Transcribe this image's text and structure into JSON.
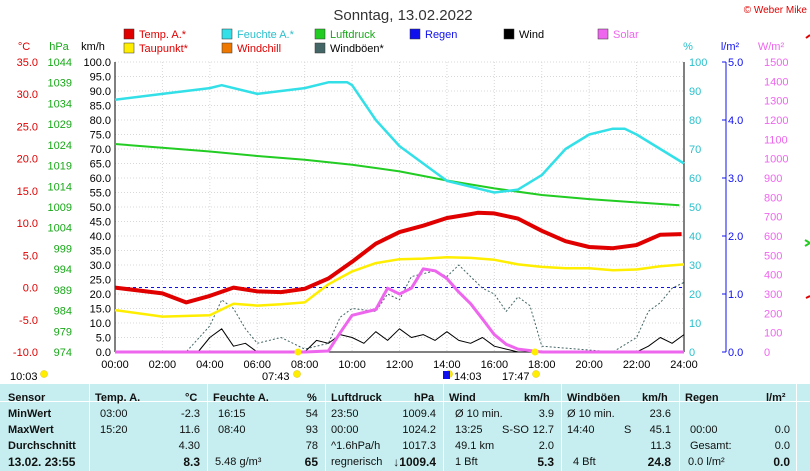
{
  "title": "Sonntag, 13.02.2022",
  "credit": "© Weber Mike",
  "legend": [
    {
      "label": "Temp. A.*",
      "color": "#e00000",
      "text": "#e00000"
    },
    {
      "label": "Feuchte A.*",
      "color": "#33e0e8",
      "text": "#2bc0cc"
    },
    {
      "label": "Luftdruck",
      "color": "#22cc22",
      "text": "#18a818"
    },
    {
      "label": "Regen",
      "color": "#1010ee",
      "text": "#1010ee"
    },
    {
      "label": "Wind",
      "color": "#000000",
      "text": "#000000"
    },
    {
      "label": "Solar",
      "color": "#ee66ee",
      "text": "#ee66ee"
    },
    {
      "label": "Taupunkt*",
      "color": "#ffee00",
      "text": "#e00000"
    },
    {
      "label": "Windchill",
      "color": "#ee7700",
      "text": "#e00000"
    },
    {
      "label": "Windböen*",
      "color": "#446666",
      "text": "#000000"
    }
  ],
  "axes": {
    "temp": {
      "unit": "°C",
      "ticks": [
        "35.0",
        "30.0",
        "25.0",
        "20.0",
        "15.0",
        "10.0",
        "5.0",
        "0.0",
        "-5.0",
        "-10.0"
      ]
    },
    "press": {
      "unit": "hPa",
      "ticks": [
        "1044",
        "1039",
        "1034",
        "1029",
        "1024",
        "1019",
        "1014",
        "1009",
        "1004",
        "999",
        "994",
        "989",
        "984",
        "979",
        "974"
      ]
    },
    "wind": {
      "unit": "km/h",
      "ticks": [
        "100.0",
        "95.0",
        "90.0",
        "85.0",
        "80.0",
        "75.0",
        "70.0",
        "65.0",
        "60.0",
        "55.0",
        "50.0",
        "45.0",
        "40.0",
        "35.0",
        "30.0",
        "25.0",
        "20.0",
        "15.0",
        "10.0",
        "5.0",
        "0.0"
      ]
    },
    "hum": {
      "unit": "%",
      "ticks": [
        "100",
        "90",
        "80",
        "70",
        "60",
        "50",
        "40",
        "30",
        "20",
        "10",
        "0"
      ]
    },
    "rain": {
      "unit": "l/m²",
      "ticks": [
        "5.0",
        "4.0",
        "3.0",
        "2.0",
        "1.0",
        "0.0"
      ]
    },
    "solar": {
      "unit": "W/m²",
      "ticks": [
        "1500",
        "1400",
        "1300",
        "1200",
        "1100",
        "1000",
        "900",
        "800",
        "700",
        "600",
        "500",
        "400",
        "300",
        "200",
        "100",
        "0"
      ]
    },
    "time": [
      "00:00",
      "02:00",
      "04:00",
      "06:00",
      "08:00",
      "10:00",
      "12:00",
      "14:00",
      "16:00",
      "18:00",
      "20:00",
      "22:00",
      "24:00"
    ]
  },
  "sun_marks": [
    {
      "label": "10:03"
    },
    {
      "label": "07:43"
    },
    {
      "label": "14:03"
    },
    {
      "label": "17:47"
    }
  ],
  "chart_data": {
    "type": "line",
    "x_unit": "hour of day",
    "xlim": [
      0,
      24
    ],
    "series": [
      {
        "name": "Temp. A.*",
        "axis": "°C",
        "points": [
          [
            0,
            0.0
          ],
          [
            2,
            -0.9
          ],
          [
            3,
            -2.3
          ],
          [
            4,
            -1.3
          ],
          [
            5,
            0.0
          ],
          [
            6,
            -0.6
          ],
          [
            7,
            -0.7
          ],
          [
            8,
            -0.2
          ],
          [
            9,
            1.4
          ],
          [
            10,
            4.0
          ],
          [
            11,
            6.8
          ],
          [
            12,
            8.6
          ],
          [
            13,
            9.6
          ],
          [
            14,
            10.8
          ],
          [
            15,
            11.4
          ],
          [
            15.3,
            11.6
          ],
          [
            16,
            11.5
          ],
          [
            17,
            10.7
          ],
          [
            18,
            8.8
          ],
          [
            19,
            7.2
          ],
          [
            20,
            6.3
          ],
          [
            21,
            6.1
          ],
          [
            22,
            6.6
          ],
          [
            23,
            8.2
          ],
          [
            23.9,
            8.3
          ]
        ]
      },
      {
        "name": "Taupunkt*",
        "axis": "°C",
        "points": [
          [
            0,
            -3.5
          ],
          [
            2,
            -4.5
          ],
          [
            4,
            -4.3
          ],
          [
            5,
            -2.5
          ],
          [
            6,
            -2.8
          ],
          [
            7,
            -2.6
          ],
          [
            8,
            -2.3
          ],
          [
            9,
            0.5
          ],
          [
            10,
            2.5
          ],
          [
            11,
            3.8
          ],
          [
            12,
            4.4
          ],
          [
            13,
            4.5
          ],
          [
            14,
            4.7
          ],
          [
            15,
            4.6
          ],
          [
            16,
            4.3
          ],
          [
            17,
            3.6
          ],
          [
            18,
            3.2
          ],
          [
            19,
            3.0
          ],
          [
            20,
            3.0
          ],
          [
            21,
            2.7
          ],
          [
            22,
            2.8
          ],
          [
            23,
            3.3
          ],
          [
            24,
            3.6
          ]
        ]
      },
      {
        "name": "Feuchte A.*",
        "axis": "%",
        "points": [
          [
            0,
            87
          ],
          [
            2,
            89
          ],
          [
            3,
            90
          ],
          [
            4,
            91
          ],
          [
            4.5,
            92
          ],
          [
            6,
            89
          ],
          [
            8,
            91
          ],
          [
            9,
            93
          ],
          [
            9.8,
            93
          ],
          [
            10,
            92
          ],
          [
            11,
            80
          ],
          [
            12,
            71
          ],
          [
            13,
            65
          ],
          [
            14,
            59
          ],
          [
            15,
            57
          ],
          [
            16,
            55
          ],
          [
            17,
            56
          ],
          [
            18,
            61
          ],
          [
            19,
            70
          ],
          [
            20,
            75
          ],
          [
            21,
            77
          ],
          [
            21.5,
            77
          ],
          [
            22,
            75
          ],
          [
            23,
            70
          ],
          [
            24,
            65
          ]
        ]
      },
      {
        "name": "Luftdruck",
        "axis": "hPa",
        "points": [
          [
            0,
            1024.2
          ],
          [
            2,
            1023.3
          ],
          [
            4,
            1022.4
          ],
          [
            6,
            1021.3
          ],
          [
            8,
            1020.4
          ],
          [
            10,
            1019.2
          ],
          [
            12,
            1017.6
          ],
          [
            14,
            1015.4
          ],
          [
            16,
            1013.5
          ],
          [
            18,
            1011.9
          ],
          [
            20,
            1010.9
          ],
          [
            22,
            1010.1
          ],
          [
            23.8,
            1009.4
          ]
        ]
      },
      {
        "name": "Solar",
        "axis": "W/m²",
        "points": [
          [
            0,
            0
          ],
          [
            8,
            0
          ],
          [
            9,
            5
          ],
          [
            9.5,
            100
          ],
          [
            10,
            190
          ],
          [
            11,
            220
          ],
          [
            11.5,
            330
          ],
          [
            12,
            300
          ],
          [
            12.5,
            330
          ],
          [
            13,
            430
          ],
          [
            13.5,
            420
          ],
          [
            14,
            380
          ],
          [
            14.5,
            310
          ],
          [
            15,
            250
          ],
          [
            15.5,
            170
          ],
          [
            16,
            90
          ],
          [
            16.5,
            40
          ],
          [
            17,
            15
          ],
          [
            18,
            0
          ],
          [
            24,
            0
          ]
        ]
      },
      {
        "name": "Wind",
        "axis": "km/h",
        "points": [
          [
            0,
            0
          ],
          [
            3.5,
            0
          ],
          [
            4,
            5
          ],
          [
            4.5,
            8
          ],
          [
            5,
            2
          ],
          [
            5.5,
            3
          ],
          [
            6,
            0
          ],
          [
            8,
            0
          ],
          [
            8.5,
            4
          ],
          [
            9,
            3
          ],
          [
            9.5,
            6
          ],
          [
            10,
            5
          ],
          [
            10.5,
            3
          ],
          [
            11,
            7
          ],
          [
            11.5,
            4
          ],
          [
            12,
            8
          ],
          [
            12.5,
            5
          ],
          [
            13,
            6
          ],
          [
            13.5,
            4
          ],
          [
            14,
            7
          ],
          [
            14.5,
            4
          ],
          [
            15,
            3
          ],
          [
            15.5,
            5
          ],
          [
            16,
            2
          ],
          [
            16.5,
            1
          ],
          [
            17,
            0
          ],
          [
            22,
            0
          ],
          [
            22.5,
            2
          ],
          [
            23,
            5
          ],
          [
            23.5,
            3
          ],
          [
            24,
            6
          ]
        ]
      },
      {
        "name": "Windböen*",
        "axis": "km/h",
        "points": [
          [
            0,
            0
          ],
          [
            3,
            0
          ],
          [
            4,
            9
          ],
          [
            4.5,
            18
          ],
          [
            5,
            15
          ],
          [
            5.5,
            8
          ],
          [
            6,
            3
          ],
          [
            7,
            5
          ],
          [
            8,
            1
          ],
          [
            9,
            3
          ],
          [
            9.5,
            12
          ],
          [
            10,
            15
          ],
          [
            11,
            14
          ],
          [
            11.5,
            20
          ],
          [
            12,
            18
          ],
          [
            12.5,
            26
          ],
          [
            13,
            27
          ],
          [
            13.5,
            28
          ],
          [
            14,
            26
          ],
          [
            14.5,
            30
          ],
          [
            15,
            26
          ],
          [
            15.5,
            22
          ],
          [
            16,
            20
          ],
          [
            16.5,
            14
          ],
          [
            17,
            19
          ],
          [
            17.5,
            16
          ],
          [
            18,
            2
          ],
          [
            21,
            0
          ],
          [
            22,
            5
          ],
          [
            22.5,
            14
          ],
          [
            23,
            17
          ],
          [
            23.5,
            22
          ],
          [
            24,
            24
          ]
        ]
      }
    ]
  },
  "table": {
    "col_headers": {
      "sensor": "Sensor",
      "temp": "Temp. A.",
      "temp_u": "°C",
      "hum": "Feuchte A.",
      "hum_u": "%",
      "press": "Luftdruck",
      "press_u": "hPa",
      "wind": "Wind",
      "wind_u": "km/h",
      "gust": "Windböen",
      "gust_u": "km/h",
      "rain": "Regen",
      "rain_u": "l/m²"
    },
    "rows": [
      {
        "label": "MinWert",
        "temp_t": "03:00",
        "temp_v": "-2.3",
        "hum_t": "16:15",
        "hum_v": "54",
        "press_t": "23:50",
        "press_v": "1009.4",
        "wind_a": "Ø 10 min.",
        "wind_v": "3.9",
        "gust_a": "Ø 10 min.",
        "gust_v": "23.6",
        "rain_a": "",
        "rain_v": ""
      },
      {
        "label": "MaxWert",
        "temp_t": "15:20",
        "temp_v": "11.6",
        "hum_t": "08:40",
        "hum_v": "93",
        "press_t": "00:00",
        "press_v": "1024.2",
        "wind_a": "13:25",
        "wind_dir": "S-SO",
        "wind_v": "12.7",
        "gust_a": "14:40",
        "gust_dir": "S",
        "gust_v": "45.1",
        "rain_a": "00:00",
        "rain_v": "0.0"
      },
      {
        "label": "Durchschnitt",
        "temp_t": "",
        "temp_v": "4.30",
        "hum_t": "",
        "hum_v": "78",
        "press_t": "^1.6hPa/h",
        "press_v": "1017.3",
        "wind_a": "49.1 km",
        "wind_v": "2.0",
        "gust_a": "",
        "gust_v": "11.3",
        "rain_a": "Gesamt:",
        "rain_v": "0.0"
      }
    ],
    "current": {
      "label": "13.02. 23:55",
      "temp": "8.3",
      "hum_extra": "5.48 g/m³",
      "hum": "65",
      "press_trend": "regnerisch",
      "press": "↓1009.4",
      "wind_bft": "1 Bft",
      "wind": "5.3",
      "gust_bft": "4 Bft",
      "gust": "24.8",
      "rain_extra": "0.0 l/m²",
      "rain": "0.0"
    }
  }
}
